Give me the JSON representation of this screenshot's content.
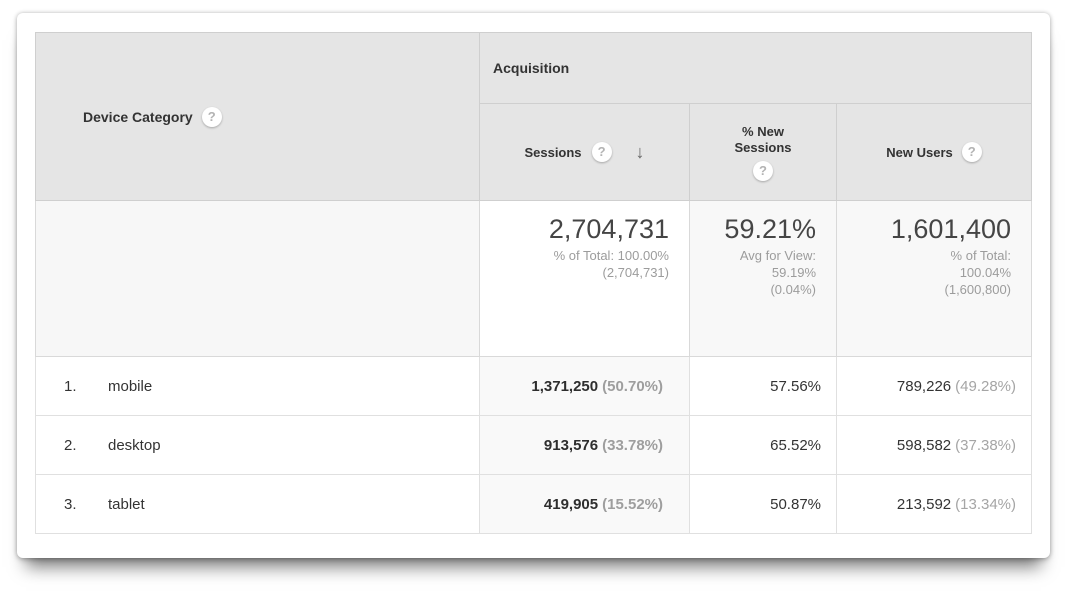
{
  "icons": {
    "help": "?",
    "sort_desc": "↓"
  },
  "colors": {
    "header_bg": "#e5e5e5",
    "sorted_column_bg": "#f9f9f9",
    "summary_soft_bg": "#f8f8f8",
    "text_dark": "#333333",
    "text_gray": "#9c9c9c"
  },
  "table": {
    "dimension_header": {
      "label": "Device Category"
    },
    "group_header": {
      "label": "Acquisition"
    },
    "columns": [
      {
        "label": "Sessions",
        "sorted": "descending"
      },
      {
        "label": "% New Sessions"
      },
      {
        "label": "New Users"
      }
    ],
    "summary": {
      "sessions": {
        "value": "2,704,731",
        "note_lines": [
          "% of Total: 100.00%",
          "(2,704,731)"
        ]
      },
      "new_sessions": {
        "value": "59.21%",
        "note_lines": [
          "Avg for View:",
          "59.19%",
          "(0.04%)"
        ]
      },
      "new_users": {
        "value": "1,601,400",
        "note_lines": [
          "% of Total:",
          "100.04%",
          "(1,600,800)"
        ]
      }
    },
    "rows": [
      {
        "index": "1.",
        "device": "mobile",
        "sessions": "1,371,250",
        "sessions_pct": "(50.70%)",
        "new_sessions_pct": "57.56%",
        "new_users": "789,226",
        "new_users_pct": "(49.28%)"
      },
      {
        "index": "2.",
        "device": "desktop",
        "sessions": "913,576",
        "sessions_pct": "(33.78%)",
        "new_sessions_pct": "65.52%",
        "new_users": "598,582",
        "new_users_pct": "(37.38%)"
      },
      {
        "index": "3.",
        "device": "tablet",
        "sessions": "419,905",
        "sessions_pct": "(15.52%)",
        "new_sessions_pct": "50.87%",
        "new_users": "213,592",
        "new_users_pct": "(13.34%)"
      }
    ]
  },
  "chart_data": {
    "type": "table",
    "title": "Device Category — Acquisition",
    "columns": [
      "Device Category",
      "Sessions",
      "Sessions % of Total",
      "% New Sessions",
      "New Users",
      "New Users % of Total"
    ],
    "rows": [
      [
        "mobile",
        1371250,
        "50.70%",
        "57.56%",
        789226,
        "49.28%"
      ],
      [
        "desktop",
        913576,
        "33.78%",
        "65.52%",
        598582,
        "37.38%"
      ],
      [
        "tablet",
        419905,
        "15.52%",
        "50.87%",
        213592,
        "13.34%"
      ]
    ],
    "totals": {
      "sessions": 2704731,
      "sessions_pct_of_total": "100.00%",
      "new_sessions_avg_for_view": "59.21%",
      "new_users": 1601400,
      "new_users_pct_of_total": "100.04%"
    }
  }
}
